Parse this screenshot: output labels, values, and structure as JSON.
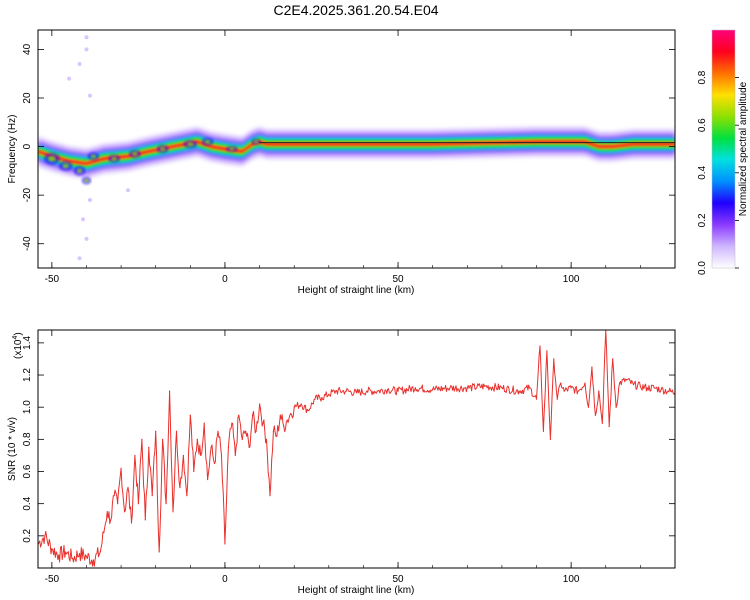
{
  "title": "C2E4.2025.361.20.54.E04",
  "spectrogram": {
    "xlabel": "Height of straight line (km)",
    "ylabel": "Frequency (Hz)",
    "xlim": [
      -54,
      130
    ],
    "ylim": [
      -50,
      48
    ],
    "xticks": [
      "-50",
      "0",
      "50",
      "100"
    ],
    "xtick_values": [
      -50,
      0,
      50,
      100
    ],
    "yticks": [
      "-40",
      "-20",
      "0",
      "20",
      "40"
    ],
    "ytick_values": [
      -40,
      -20,
      0,
      20,
      40
    ],
    "colorbar": {
      "label": "Normalized spectral amplitude",
      "range": [
        0,
        1
      ],
      "ticks": [
        "0.0",
        "0.2",
        "0.4",
        "0.6",
        "0.8"
      ],
      "tick_values": [
        0,
        0.2,
        0.4,
        0.6,
        0.8
      ],
      "colors": [
        "#ffffff",
        "#cfb6ff",
        "#8b3bff",
        "#2000ff",
        "#0090ff",
        "#00e0e0",
        "#00e040",
        "#8ee000",
        "#ffe000",
        "#ff7000",
        "#ff0020",
        "#ff007a"
      ]
    }
  },
  "chart_data": {
    "type": "line",
    "title": "C2E4.2025.361.20.54.E04",
    "xlabel": "Height of straight line (km)",
    "ylabel": "SNR (10 * v/v)",
    "y_scale_label": "(x10",
    "y_scale_exp": "4",
    "y_scale_close": ")",
    "xlim": [
      -54,
      130
    ],
    "ylim": [
      0,
      1.48
    ],
    "xticks": [
      "-50",
      "0",
      "50",
      "100"
    ],
    "xtick_values": [
      -50,
      0,
      50,
      100
    ],
    "yticks": [
      "0.2",
      "0.4",
      "0.6",
      "0.8",
      "1.0",
      "1.2",
      "1.4"
    ],
    "ytick_values": [
      0.2,
      0.4,
      0.6,
      0.8,
      1.0,
      1.2,
      1.4
    ],
    "line_color": "#e8302c",
    "series": [
      {
        "name": "SNR",
        "x": [
          -54,
          -52,
          -50,
          -48,
          -46,
          -44,
          -42,
          -40,
          -38,
          -36,
          -35,
          -34,
          -33,
          -32,
          -31,
          -30,
          -29,
          -28,
          -27,
          -26,
          -25,
          -24,
          -23,
          -22,
          -21,
          -20,
          -19,
          -18,
          -17,
          -16,
          -15,
          -14,
          -13,
          -12,
          -11,
          -10,
          -9,
          -8,
          -7,
          -6,
          -5,
          -4,
          -3,
          -2,
          -1,
          0,
          1,
          2,
          3,
          4,
          5,
          6,
          7,
          8,
          9,
          10,
          11,
          12,
          13,
          14,
          15,
          16,
          17,
          18,
          19,
          20,
          22,
          24,
          26,
          28,
          30,
          32,
          35,
          38,
          41,
          44,
          47,
          50,
          55,
          60,
          65,
          70,
          75,
          80,
          85,
          88,
          90,
          91,
          92,
          93,
          94,
          95,
          96,
          97,
          98,
          100,
          102,
          104,
          105,
          106,
          107,
          108,
          109,
          110,
          111,
          112,
          113,
          114,
          116,
          118,
          120,
          122,
          124,
          126,
          128,
          130
        ],
        "values": [
          0.15,
          0.2,
          0.12,
          0.08,
          0.1,
          0.06,
          0.09,
          0.07,
          0.05,
          0.1,
          0.22,
          0.35,
          0.3,
          0.45,
          0.4,
          0.62,
          0.35,
          0.5,
          0.28,
          0.7,
          0.4,
          0.8,
          0.3,
          0.75,
          0.45,
          0.85,
          0.1,
          0.8,
          0.4,
          1.1,
          0.35,
          0.85,
          0.5,
          0.7,
          0.45,
          0.95,
          0.6,
          0.8,
          0.7,
          0.9,
          0.55,
          0.75,
          0.65,
          0.85,
          0.7,
          0.15,
          0.75,
          0.9,
          0.7,
          0.95,
          0.8,
          0.85,
          0.75,
          0.95,
          0.85,
          1.02,
          0.9,
          0.8,
          0.45,
          0.85,
          0.82,
          0.95,
          0.88,
          0.92,
          0.96,
          1.0,
          1.02,
          0.98,
          1.05,
          1.06,
          1.08,
          1.1,
          1.1,
          1.09,
          1.1,
          1.1,
          1.11,
          1.1,
          1.12,
          1.11,
          1.12,
          1.12,
          1.13,
          1.12,
          1.1,
          1.12,
          1.05,
          1.38,
          0.85,
          1.35,
          0.8,
          1.3,
          1.05,
          1.15,
          1.1,
          1.12,
          1.1,
          1.15,
          1.0,
          1.25,
          0.95,
          1.1,
          0.9,
          1.48,
          0.88,
          1.3,
          1.0,
          1.15,
          1.17,
          1.14,
          1.13,
          1.12,
          1.12,
          1.11,
          1.1,
          1.09
        ]
      }
    ]
  }
}
